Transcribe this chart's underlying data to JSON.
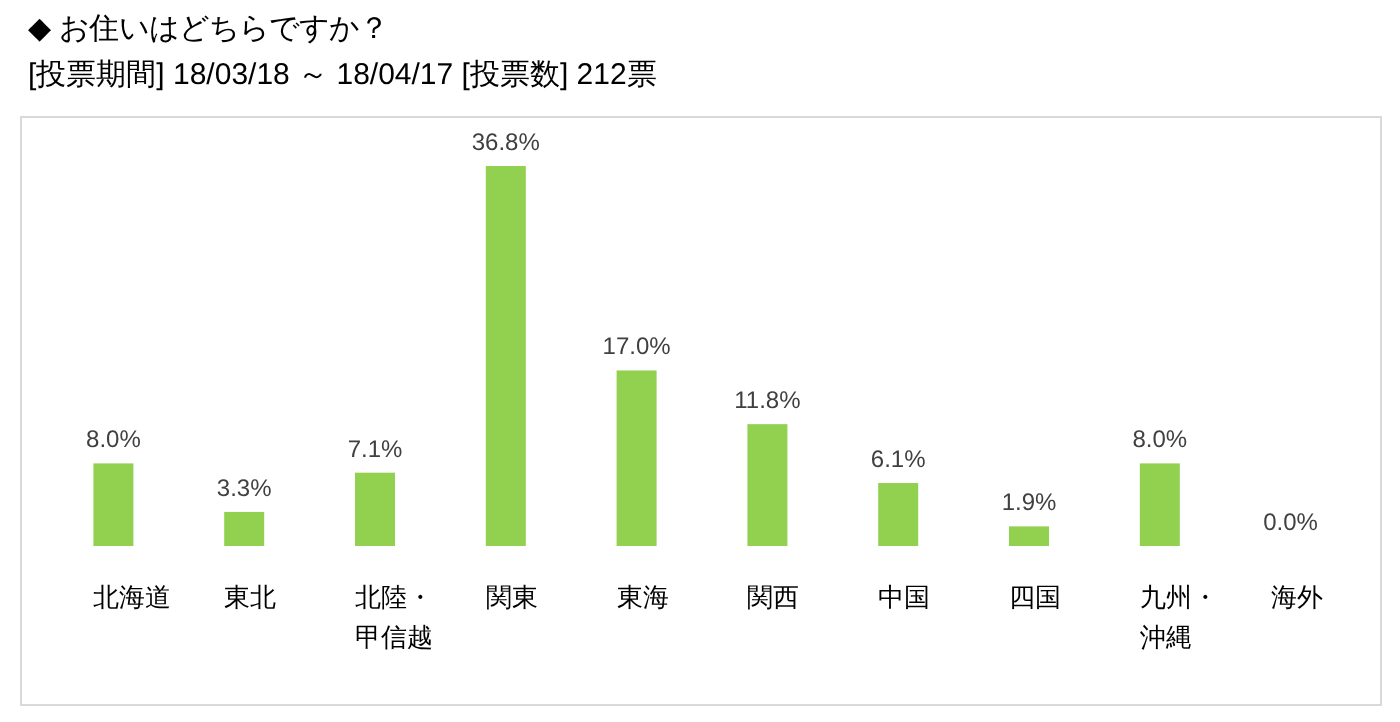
{
  "chart_data": {
    "type": "bar",
    "title": "◆ お住いはどちらですか？",
    "subtitle": "[投票期間] 18/03/18 ～ 18/04/17 [投票数] 212票",
    "categories": [
      "北海道",
      "東北",
      "北陸・甲信越",
      "関東",
      "東海",
      "関西",
      "中国",
      "四国",
      "九州・沖縄",
      "海外"
    ],
    "values": [
      8.0,
      3.3,
      7.1,
      36.8,
      17.0,
      11.8,
      6.1,
      1.9,
      8.0,
      0.0
    ],
    "value_labels": [
      "8.0%",
      "3.3%",
      "7.1%",
      "36.8%",
      "17.0%",
      "11.8%",
      "6.1%",
      "1.9%",
      "8.0%",
      "0.0%"
    ],
    "color": "#92d050"
  }
}
